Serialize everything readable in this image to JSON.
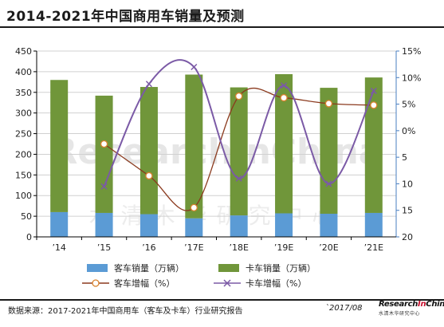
{
  "title": "2014-2021年中国商用车销量及预测",
  "source": "数据来源：2017-2021年中国商用车（客车及卡车）行业研究报告",
  "date": "`2017/08",
  "logo": {
    "main_a": "Research",
    "main_b": "In",
    "main_c": "China",
    "sub": "水清木华研究中心"
  },
  "watermark": {
    "main": "ResearchInChina",
    "sub": "水清木华研究中心"
  },
  "chart_data": {
    "type": "bar",
    "stacked": true,
    "categories": [
      "’14",
      "’15",
      "’16",
      "’17E",
      "’18E",
      "’19E",
      "’20E",
      "’21E"
    ],
    "series": [
      {
        "name": "客车销量（万辆）",
        "type": "bar",
        "axis": "left",
        "color": "#5b9bd5",
        "values": [
          60,
          58,
          55,
          45,
          52,
          57,
          56,
          58
        ]
      },
      {
        "name": "卡车销量（万辆）",
        "type": "bar",
        "axis": "left",
        "color": "#70963a",
        "values": [
          320,
          284,
          308,
          348,
          310,
          337,
          305,
          328
        ]
      },
      {
        "name": "客车增幅（%）",
        "type": "line",
        "axis": "right",
        "color": "#8b3a1e",
        "marker": "circle",
        "values": [
          null,
          -2.5,
          -8.5,
          -14.5,
          6.5,
          6.2,
          5.1,
          4.8
        ]
      },
      {
        "name": "卡车增幅（%）",
        "type": "line",
        "axis": "right",
        "color": "#7b5aa6",
        "marker": "x",
        "values": [
          null,
          -10.5,
          8.8,
          12.0,
          -9.0,
          8.5,
          -10.0,
          7.5
        ]
      }
    ],
    "left_axis": {
      "ticks": [
        "0",
        "50",
        "100",
        "150",
        "200",
        "250",
        "300",
        "350",
        "400",
        "450"
      ],
      "ylim": [
        0,
        450
      ]
    },
    "right_axis": {
      "ticks": [
        "15%",
        "10%",
        "5%",
        "0%",
        "5",
        "10",
        "15",
        "20"
      ],
      "ylim": [
        -20,
        15
      ],
      "reversed_labels": true
    },
    "grid": true,
    "legend_position": "bottom"
  }
}
